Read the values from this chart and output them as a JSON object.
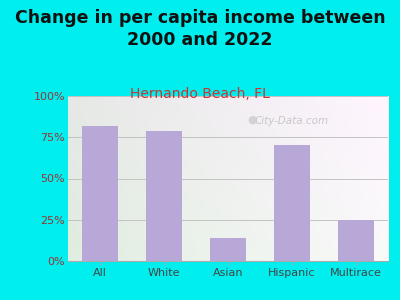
{
  "title": "Change in per capita income between\n2000 and 2022",
  "subtitle": "Hernando Beach, FL",
  "categories": [
    "All",
    "White",
    "Asian",
    "Hispanic",
    "Multirace"
  ],
  "values": [
    82,
    79,
    14,
    70,
    25
  ],
  "bar_color": "#b8a8d8",
  "background_color": "#00eeee",
  "title_fontsize": 12.5,
  "subtitle_fontsize": 10,
  "subtitle_color": "#cc3333",
  "title_color": "#111111",
  "ytick_color": "#993333",
  "xtick_color": "#444444",
  "ylim": [
    0,
    100
  ],
  "yticks": [
    0,
    25,
    50,
    75,
    100
  ],
  "ytick_labels": [
    "0%",
    "25%",
    "50%",
    "75%",
    "100%"
  ],
  "watermark": "City-Data.com"
}
